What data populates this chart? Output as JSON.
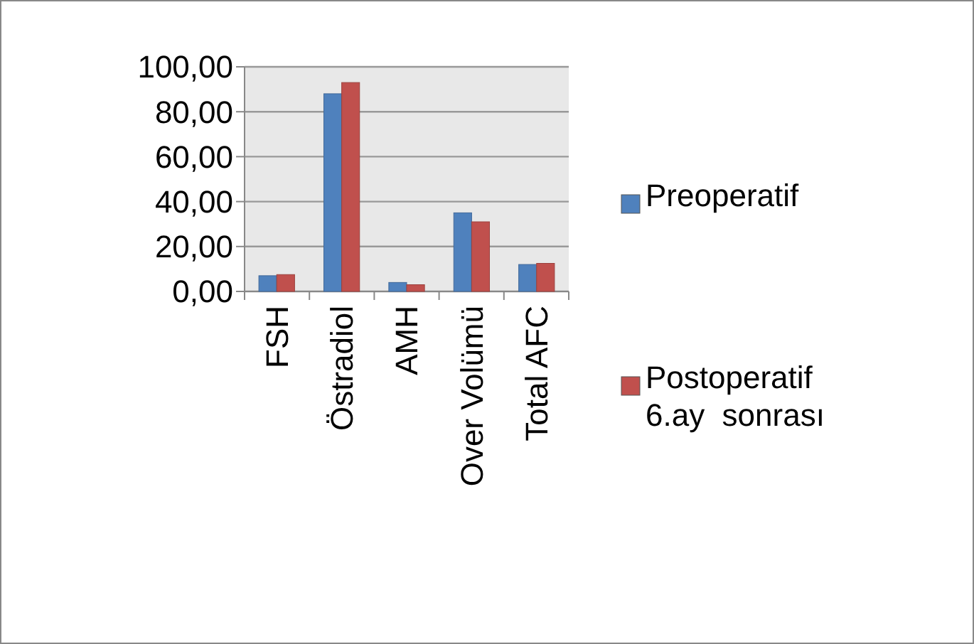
{
  "chart_data": {
    "type": "bar",
    "categories": [
      "FSH",
      "Östradiol",
      "AMH",
      "Over Volümü",
      "Total AFC"
    ],
    "series": [
      {
        "name": "Preoperatif",
        "color": "#4f81bd",
        "values": [
          7,
          88,
          4,
          35,
          12
        ]
      },
      {
        "name": "Postoperatif 6.ay  sonrası",
        "color": "#c0504d",
        "values": [
          7.5,
          93,
          3,
          31,
          12.5
        ]
      }
    ],
    "ylim": [
      0,
      100
    ],
    "yticks": [
      {
        "value": 0,
        "label": "0,00"
      },
      {
        "value": 20,
        "label": "20,00"
      },
      {
        "value": 40,
        "label": "40,00"
      },
      {
        "value": 60,
        "label": "60,00"
      },
      {
        "value": 80,
        "label": "80,00"
      },
      {
        "value": 100,
        "label": "100,00"
      }
    ],
    "grid": "y",
    "legend": "right"
  }
}
